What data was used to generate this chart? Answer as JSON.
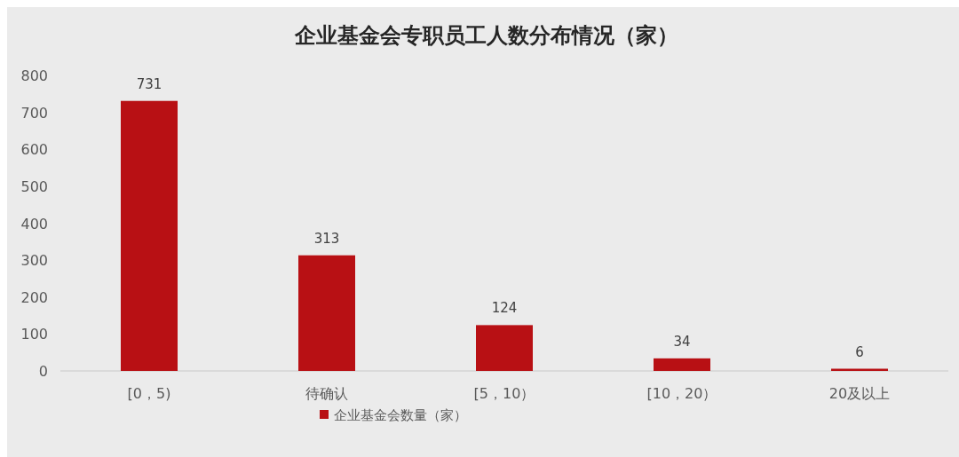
{
  "chart_data": {
    "type": "bar",
    "title": "企业基金会专职员工人数分布情况（家）",
    "categories": [
      "[0，5)",
      "待确认",
      "[5，10）",
      "[10，20）",
      "20及以上"
    ],
    "series": [
      {
        "name": "企业基金会数量（家）",
        "color": "#b81014",
        "values": [
          731,
          313,
          124,
          34,
          6
        ]
      }
    ],
    "ylim": [
      0,
      800
    ],
    "yticks": [
      0,
      100,
      200,
      300,
      400,
      500,
      600,
      700,
      800
    ],
    "data_labels": true,
    "legend": "bottom",
    "grid": false
  }
}
